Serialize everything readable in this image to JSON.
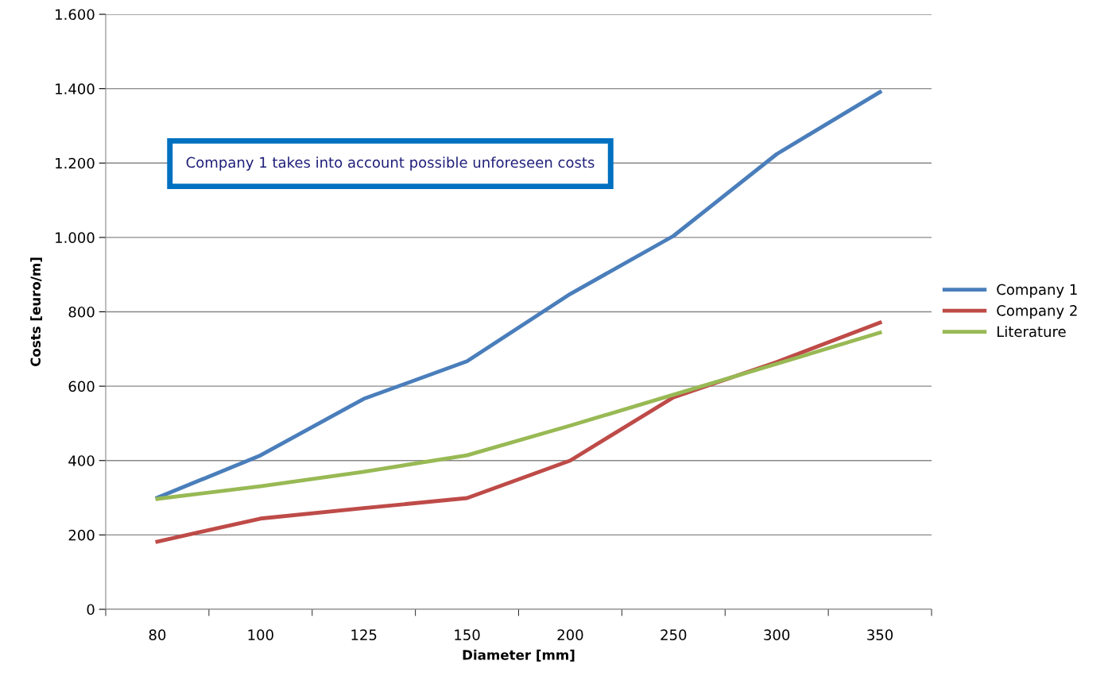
{
  "chart_data": {
    "type": "line",
    "xlabel": "Diameter [mm]",
    "ylabel": "Costs [euro/m]",
    "categories": [
      "80",
      "100",
      "125",
      "150",
      "200",
      "250",
      "300",
      "350"
    ],
    "series": [
      {
        "name": "Company 1",
        "color": "#4a7ebb",
        "values": [
          300,
          414,
          566,
          667,
          848,
          1004,
          1224,
          1391
        ]
      },
      {
        "name": "Company 2",
        "color": "#be4b48",
        "values": [
          182,
          244,
          272,
          299,
          400,
          570,
          665,
          771
        ]
      },
      {
        "name": "Literature",
        "color": "#98b954",
        "values": [
          297,
          331,
          370,
          414,
          494,
          577,
          660,
          744
        ]
      }
    ],
    "ylim": [
      0,
      1600
    ],
    "yticks": [
      0,
      200,
      400,
      600,
      800,
      {
        "value": 1000,
        "label": "1.000"
      },
      {
        "value": 1200,
        "label": "1.200"
      },
      {
        "value": 1400,
        "label": "1.400"
      },
      {
        "value": 1600,
        "label": "1.600"
      }
    ],
    "grid": "y",
    "legend": "right",
    "marker": "none",
    "line_style": "solid",
    "annotations": [
      "Company 1 takes into account possible unforeseen costs"
    ]
  }
}
